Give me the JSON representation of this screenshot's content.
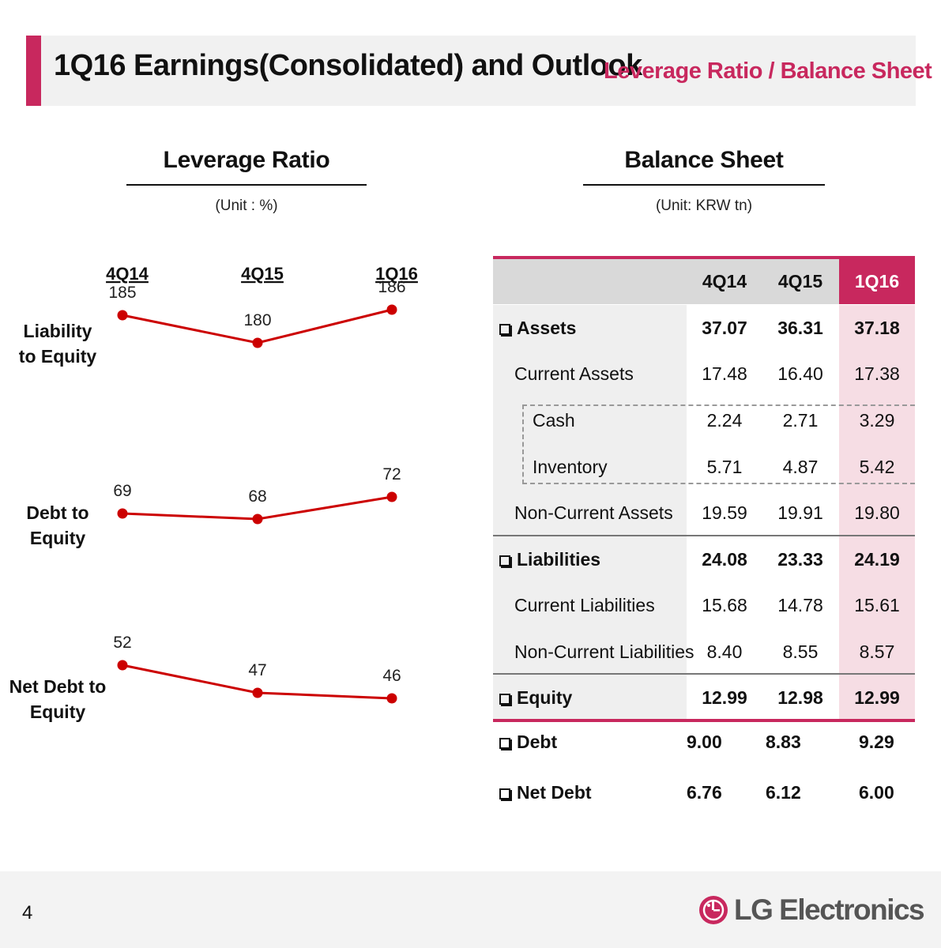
{
  "header": {
    "title": "1Q16 Earnings(Consolidated) and Outlook",
    "subtitle": "Leverage Ratio / Balance Sheet"
  },
  "leverage": {
    "title": "Leverage Ratio",
    "unit": "(Unit : %)"
  },
  "balance": {
    "title": "Balance Sheet",
    "unit": "(Unit: KRW tn)",
    "columns": [
      "4Q14",
      "4Q15",
      "1Q16"
    ],
    "rows": [
      {
        "label": "Assets",
        "values": [
          "37.07",
          "36.31",
          "37.18"
        ]
      },
      {
        "label": "Current Assets",
        "values": [
          "17.48",
          "16.40",
          "17.38"
        ]
      },
      {
        "label": "Cash",
        "values": [
          "2.24",
          "2.71",
          "3.29"
        ]
      },
      {
        "label": "Inventory",
        "values": [
          "5.71",
          "4.87",
          "5.42"
        ]
      },
      {
        "label": "Non-Current Assets",
        "values": [
          "19.59",
          "19.91",
          "19.80"
        ]
      },
      {
        "label": "Liabilities",
        "values": [
          "24.08",
          "23.33",
          "24.19"
        ]
      },
      {
        "label": "Current Liabilities",
        "values": [
          "15.68",
          "14.78",
          "15.61"
        ]
      },
      {
        "label": "Non-Current Liabilities",
        "values": [
          "8.40",
          "8.55",
          "8.57"
        ]
      },
      {
        "label": "Equity",
        "values": [
          "12.99",
          "12.98",
          "12.99"
        ]
      }
    ],
    "extras": [
      {
        "label": "Debt",
        "values": [
          "9.00",
          "8.83",
          "9.29"
        ]
      },
      {
        "label": "Net Debt",
        "values": [
          "6.76",
          "6.12",
          "6.00"
        ]
      }
    ]
  },
  "footer": {
    "page": "4",
    "logo_text": "LG Electronics",
    "logo_color": "#c8285e"
  },
  "chart_data": {
    "type": "line",
    "categories": [
      "4Q14",
      "4Q15",
      "1Q16"
    ],
    "series": [
      {
        "name": "Liability to Equity",
        "values": [
          185,
          180,
          186
        ]
      },
      {
        "name": "Debt to Equity",
        "values": [
          69,
          68,
          72
        ]
      },
      {
        "name": "Net Debt to Equity",
        "values": [
          52,
          47,
          46
        ]
      }
    ],
    "line_color": "#cc0000"
  }
}
